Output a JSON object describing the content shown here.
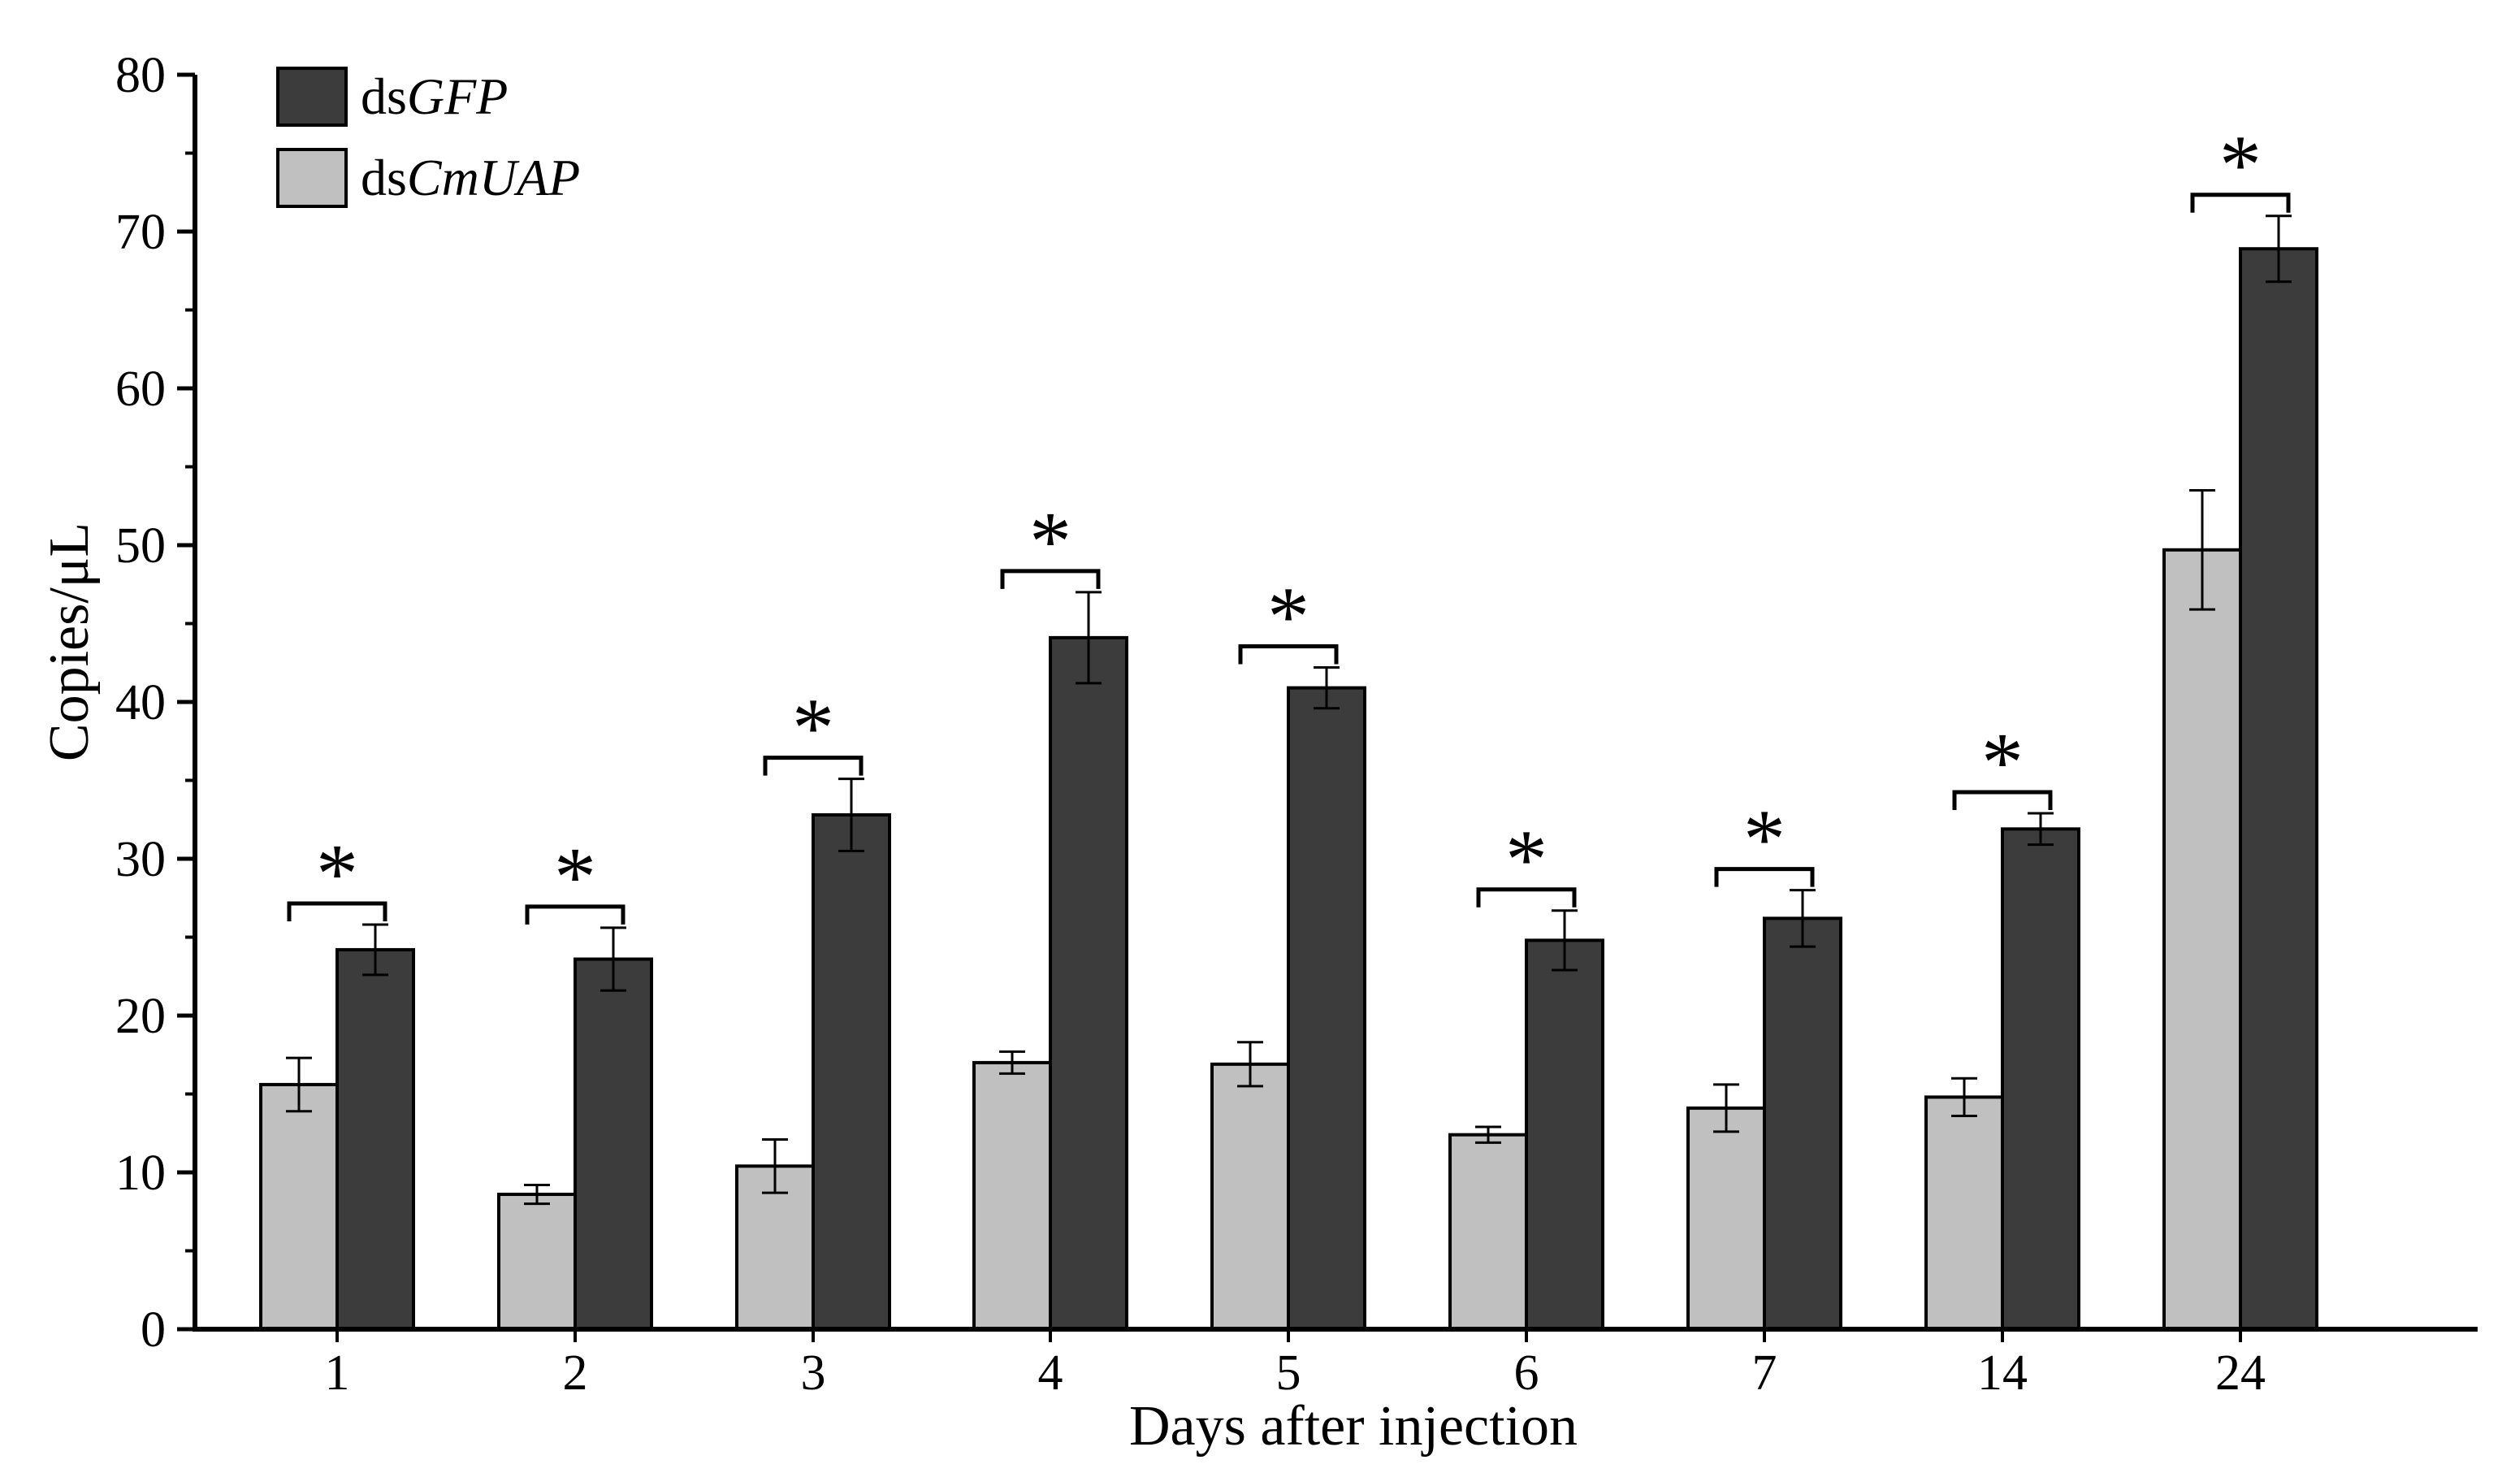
{
  "chart_data": {
    "type": "bar",
    "title": "",
    "xlabel": "Days after injection",
    "ylabel": "Copies/μL",
    "ylim": [
      0,
      80
    ],
    "yticks": [
      0,
      10,
      20,
      30,
      40,
      50,
      60,
      70,
      80
    ],
    "categories": [
      "1",
      "2",
      "3",
      "4",
      "5",
      "6",
      "7",
      "14",
      "24"
    ],
    "series": [
      {
        "name": "dsCmUAP",
        "prefix": "ds",
        "gene": "CmUAP",
        "color": "#c0c0c0",
        "values": [
          15.6,
          8.6,
          10.4,
          17.0,
          16.9,
          12.4,
          14.1,
          14.8,
          49.7
        ],
        "errors": [
          1.7,
          0.6,
          1.7,
          0.7,
          1.4,
          0.5,
          1.5,
          1.2,
          3.8
        ]
      },
      {
        "name": "dsGFP",
        "prefix": "ds",
        "gene": "GFP",
        "color": "#3c3c3c",
        "values": [
          24.2,
          23.6,
          32.8,
          44.1,
          40.9,
          24.8,
          26.2,
          31.9,
          68.9
        ],
        "errors": [
          1.6,
          2.0,
          2.3,
          2.9,
          1.3,
          1.9,
          1.8,
          1.0,
          2.1
        ]
      }
    ],
    "significance": [
      "*",
      "*",
      "*",
      "*",
      "*",
      "*",
      "*",
      "*",
      "*"
    ],
    "legend_position": "top-left"
  }
}
